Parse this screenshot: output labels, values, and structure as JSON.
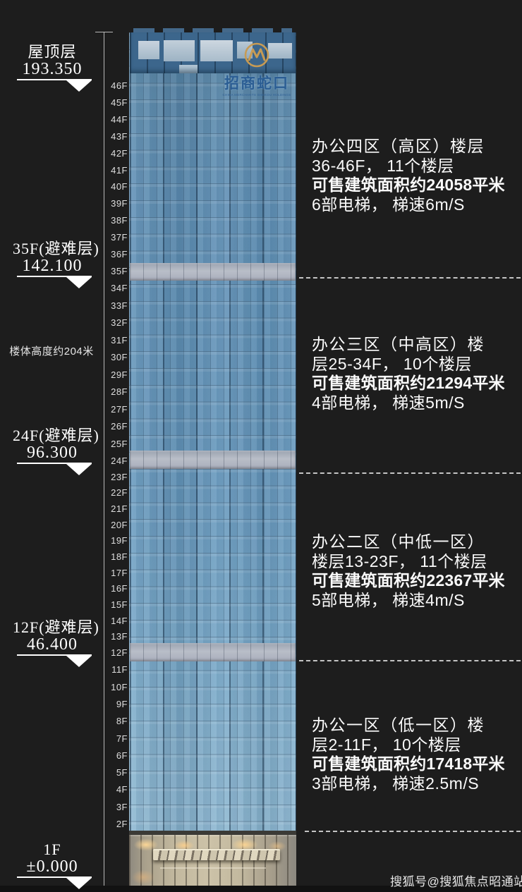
{
  "building": {
    "logo_text": "招商蛇口",
    "logo_subtext": "CHINA MERCHANTS SHEKOU HOLDINGS",
    "floor_labels": [
      "46F",
      "45F",
      "44F",
      "43F",
      "42F",
      "41F",
      "40F",
      "39F",
      "38F",
      "37F",
      "36F",
      "35F",
      "34F",
      "33F",
      "32F",
      "31F",
      "30F",
      "29F",
      "28F",
      "27F",
      "26F",
      "25F",
      "24F",
      "23F",
      "22F",
      "21F",
      "20F",
      "19F",
      "18F",
      "17F",
      "16F",
      "15F",
      "14F",
      "13F",
      "12F",
      "11F",
      "10F",
      "9F",
      "8F",
      "7F",
      "6F",
      "5F",
      "4F",
      "3F",
      "2F"
    ],
    "refuge_floors": [
      "35F",
      "24F",
      "12F"
    ]
  },
  "markers": [
    {
      "label": "屋顶层",
      "value": "193.350"
    },
    {
      "label": "35F(避难层)",
      "value": "142.100"
    },
    {
      "label": "24F(避难层)",
      "value": "96.300"
    },
    {
      "label": "12F(避难层)",
      "value": "46.400"
    },
    {
      "label": "1F",
      "value": "±0.000"
    }
  ],
  "height_note": "楼体高度约204米",
  "zones": [
    {
      "lines": [
        "办公四区（高区）楼层",
        "36-46F， 11个楼层",
        "可售建筑面积约24058平米",
        "6部电梯， 梯速6m/S"
      ]
    },
    {
      "lines": [
        "办公三区（中高区）楼",
        "层25-34F， 10个楼层",
        "可售建筑面积约21294平米",
        "4部电梯， 梯速5m/S"
      ]
    },
    {
      "lines": [
        "办公二区（中低一区）",
        "楼层13-23F， 11个楼层",
        "可售建筑面积约22367平米",
        "5部电梯， 梯速4m/S"
      ]
    },
    {
      "lines": [
        "办公一区（低一区）楼",
        "层2-11F， 10个楼层",
        "可售建筑面积约17418平米",
        "3部电梯， 梯速2.5m/S"
      ]
    }
  ],
  "watermark": "搜狐号@搜狐焦点昭通站",
  "colors": {
    "background": "#1d1d1d",
    "facade_blue": "#6495ba",
    "refuge_gray": "#aeb3bf",
    "podium_beige": "#c3b99f",
    "logo_gold": "#c79b54",
    "logo_blue": "#2b5d93",
    "text_white": "#fafafa",
    "dash_gray": "#c4c4c4"
  }
}
